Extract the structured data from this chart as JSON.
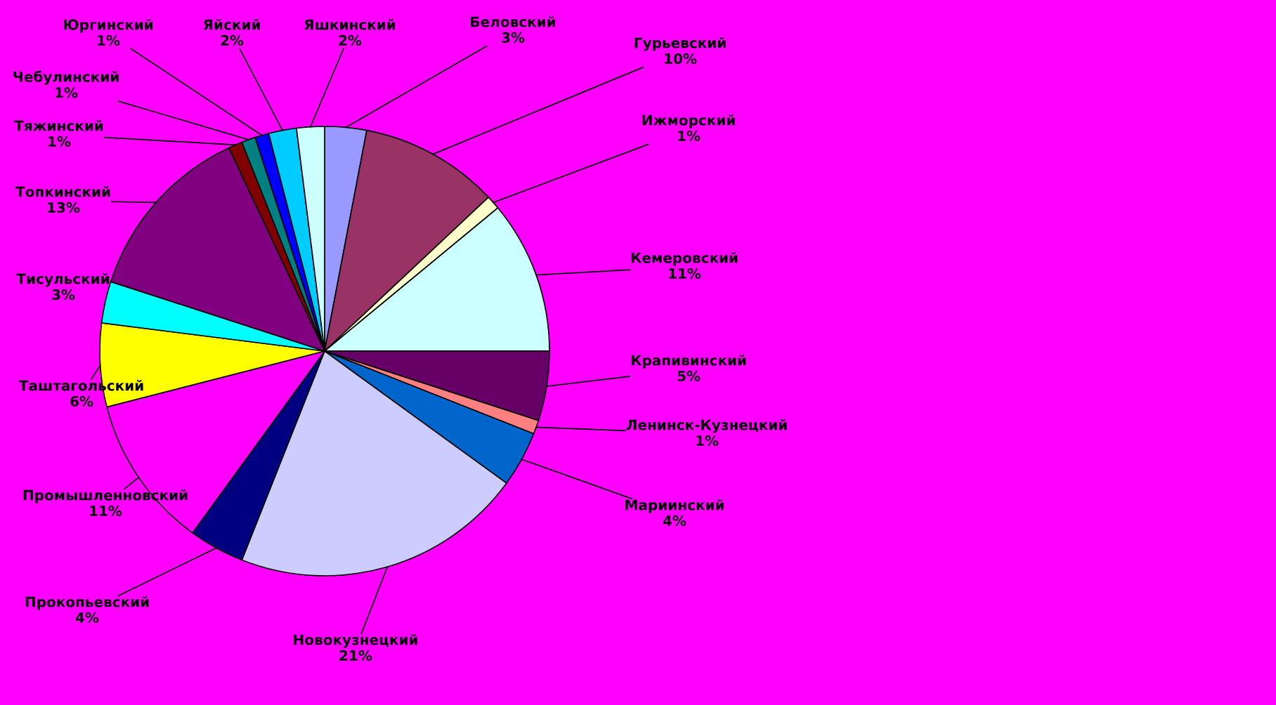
{
  "chart_data": {
    "type": "pie",
    "categories": [
      "Беловский",
      "Гурьевский",
      "Ижморский",
      "Кемеровский",
      "Крапивинский",
      "Ленинск-Кузнецкий",
      "Мариинский",
      "Новокузнецкий",
      "Прокопьевский",
      "Промышленновский",
      "Таштагольский",
      "Тисульский",
      "Топкинский",
      "Тяжинский",
      "Чебулинский",
      "Юргинский",
      "Яйский",
      "Яшкинский"
    ],
    "values": [
      3,
      10,
      1,
      11,
      5,
      1,
      4,
      21,
      4,
      11,
      6,
      3,
      13,
      1,
      1,
      1,
      2,
      2
    ],
    "value_labels": [
      "3%",
      "10%",
      "1%",
      "11%",
      "5%",
      "1%",
      "4%",
      "21%",
      "4%",
      "11%",
      "6%",
      "3%",
      "13%",
      "1%",
      "1%",
      "1%",
      "2%",
      "2%"
    ],
    "colors": [
      "#9999ff",
      "#993366",
      "#ffffcc",
      "#ccffff",
      "#660066",
      "#ff8080",
      "#0066cc",
      "#ccccff",
      "#000080",
      "#ff00ff",
      "#ffff00",
      "#00ffff",
      "#800080",
      "#800000",
      "#008080",
      "#0000ff",
      "#00ccff",
      "#ccffff"
    ],
    "legend": false
  }
}
